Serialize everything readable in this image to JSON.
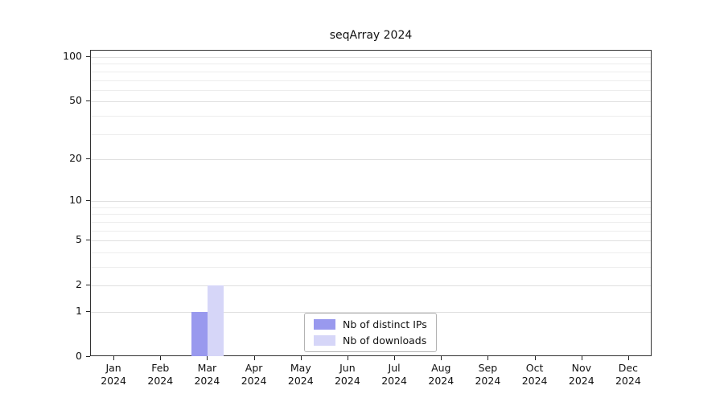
{
  "title": "seqArray 2024",
  "chart_data": {
    "type": "bar",
    "title": "seqArray 2024",
    "categories": [
      "Jan 2024",
      "Feb 2024",
      "Mar 2024",
      "Apr 2024",
      "May 2024",
      "Jun 2024",
      "Jul 2024",
      "Aug 2024",
      "Sep 2024",
      "Oct 2024",
      "Nov 2024",
      "Dec 2024"
    ],
    "series": [
      {
        "name": "Nb of distinct IPs",
        "color": "#9999ee",
        "values": [
          0,
          0,
          1,
          0,
          0,
          0,
          0,
          0,
          0,
          0,
          0,
          0
        ]
      },
      {
        "name": "Nb of downloads",
        "color": "#d6d6f8",
        "values": [
          0,
          0,
          2,
          0,
          0,
          0,
          0,
          0,
          0,
          0,
          0,
          0
        ]
      }
    ],
    "y_ticks": [
      0,
      1,
      2,
      5,
      10,
      20,
      50,
      100
    ],
    "y_scale": "log1p",
    "ylim": [
      0,
      100
    ],
    "xlabel": "",
    "ylabel": "",
    "grid": true,
    "legend_position": "bottom-center-inside"
  }
}
